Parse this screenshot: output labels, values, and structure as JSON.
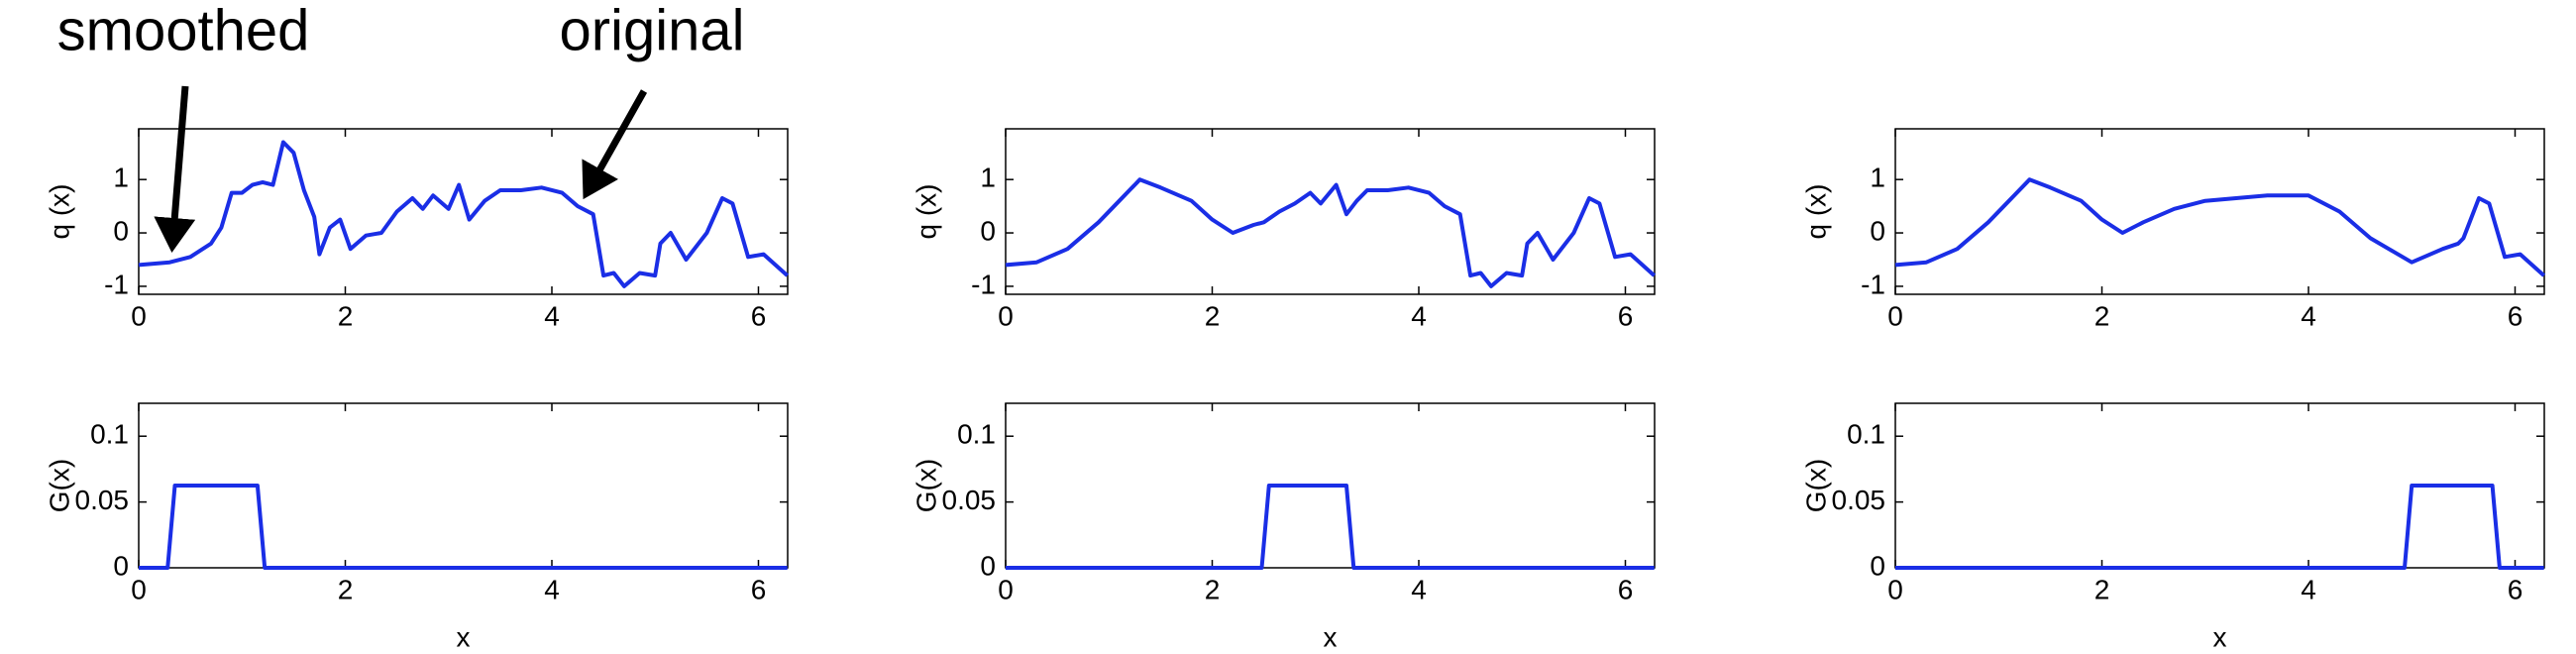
{
  "chart_data": [
    {
      "type": "line",
      "ylabel": "q (x)",
      "annotations": [
        "smoothed",
        "original"
      ],
      "color": "#1a2ee6",
      "x": [
        0,
        0.3,
        0.5,
        0.7,
        0.8,
        0.9,
        1.0,
        1.1,
        1.2,
        1.3,
        1.4,
        1.5,
        1.6,
        1.7,
        1.75,
        1.85,
        1.95,
        2.05,
        2.2,
        2.35,
        2.5,
        2.65,
        2.75,
        2.85,
        3.0,
        3.1,
        3.2,
        3.35,
        3.5,
        3.7,
        3.9,
        4.1,
        4.25,
        4.4,
        4.5,
        4.6,
        4.7,
        4.85,
        5.0,
        5.05,
        5.15,
        5.3,
        5.5,
        5.65,
        5.75,
        5.9,
        6.05,
        6.28
      ],
      "values": [
        -0.6,
        -0.55,
        -0.45,
        -0.2,
        0.1,
        0.75,
        0.75,
        0.9,
        0.95,
        0.9,
        1.7,
        1.5,
        0.8,
        0.3,
        -0.4,
        0.1,
        0.25,
        -0.3,
        -0.05,
        0,
        0.4,
        0.65,
        0.45,
        0.7,
        0.45,
        0.9,
        0.25,
        0.6,
        0.8,
        0.8,
        0.85,
        0.75,
        0.5,
        0.35,
        -0.8,
        -0.75,
        -1.0,
        -0.75,
        -0.8,
        -0.2,
        0.0,
        -0.5,
        0.0,
        0.65,
        0.55,
        -0.45,
        -0.4,
        -0.8
      ],
      "xlim": [
        0,
        6.283
      ],
      "xticks": [
        0,
        2,
        4,
        6
      ],
      "ylim": [
        -1.15,
        1.95
      ],
      "yticks": [
        -1,
        0,
        1
      ]
    },
    {
      "type": "line",
      "ylabel": "q (x)",
      "color": "#1a2ee6",
      "x": [
        0,
        0.3,
        0.6,
        0.9,
        1.1,
        1.3,
        1.5,
        1.8,
        2.0,
        2.2,
        2.4,
        2.5,
        2.65,
        2.8,
        2.95,
        3.05,
        3.2,
        3.3,
        3.4,
        3.5,
        3.7,
        3.9,
        4.1,
        4.25,
        4.4,
        4.5,
        4.6,
        4.7,
        4.85,
        5.0,
        5.05,
        5.15,
        5.3,
        5.5,
        5.65,
        5.75,
        5.9,
        6.05,
        6.28
      ],
      "values": [
        -0.6,
        -0.55,
        -0.3,
        0.2,
        0.6,
        1.0,
        0.85,
        0.6,
        0.25,
        0.0,
        0.15,
        0.2,
        0.4,
        0.55,
        0.75,
        0.55,
        0.9,
        0.35,
        0.6,
        0.8,
        0.8,
        0.85,
        0.75,
        0.5,
        0.35,
        -0.8,
        -0.75,
        -1.0,
        -0.75,
        -0.8,
        -0.2,
        0.0,
        -0.5,
        0.0,
        0.65,
        0.55,
        -0.45,
        -0.4,
        -0.8
      ],
      "xlim": [
        0,
        6.283
      ],
      "xticks": [
        0,
        2,
        4,
        6
      ],
      "ylim": [
        -1.15,
        1.95
      ],
      "yticks": [
        -1,
        0,
        1
      ]
    },
    {
      "type": "line",
      "ylabel": "q (x)",
      "color": "#1a2ee6",
      "x": [
        0,
        0.3,
        0.6,
        0.9,
        1.1,
        1.3,
        1.5,
        1.8,
        2.0,
        2.2,
        2.4,
        2.7,
        3.0,
        3.3,
        3.6,
        4.0,
        4.3,
        4.6,
        5.0,
        5.3,
        5.45,
        5.5,
        5.65,
        5.75,
        5.9,
        6.05,
        6.28
      ],
      "values": [
        -0.6,
        -0.55,
        -0.3,
        0.2,
        0.6,
        1.0,
        0.85,
        0.6,
        0.25,
        0.0,
        0.2,
        0.45,
        0.6,
        0.65,
        0.7,
        0.7,
        0.4,
        -0.1,
        -0.55,
        -0.3,
        -0.2,
        -0.1,
        0.65,
        0.55,
        -0.45,
        -0.4,
        -0.8
      ],
      "xlim": [
        0,
        6.283
      ],
      "xticks": [
        0,
        2,
        4,
        6
      ],
      "ylim": [
        -1.15,
        1.95
      ],
      "yticks": [
        -1,
        0,
        1
      ]
    },
    {
      "type": "line",
      "ylabel": "G(x)",
      "xlabel": "x",
      "color": "#1a2ee6",
      "x": [
        0,
        0.28,
        0.35,
        1.15,
        1.22,
        6.28
      ],
      "values": [
        0,
        0,
        0.0625,
        0.0625,
        0,
        0
      ],
      "xlim": [
        0,
        6.283
      ],
      "xticks": [
        0,
        2,
        4,
        6
      ],
      "ylim": [
        0,
        0.125
      ],
      "yticks": [
        0,
        0.05,
        0.1
      ]
    },
    {
      "type": "line",
      "ylabel": "G(x)",
      "xlabel": "x",
      "color": "#1a2ee6",
      "x": [
        0,
        2.48,
        2.55,
        3.3,
        3.37,
        6.28
      ],
      "values": [
        0,
        0,
        0.0625,
        0.0625,
        0,
        0
      ],
      "xlim": [
        0,
        6.283
      ],
      "xticks": [
        0,
        2,
        4,
        6
      ],
      "ylim": [
        0,
        0.125
      ],
      "yticks": [
        0,
        0.05,
        0.1
      ]
    },
    {
      "type": "line",
      "ylabel": "G(x)",
      "xlabel": "x",
      "color": "#1a2ee6",
      "x": [
        0,
        4.93,
        5.0,
        5.78,
        5.85,
        6.28
      ],
      "values": [
        0,
        0,
        0.0625,
        0.0625,
        0,
        0
      ],
      "xlim": [
        0,
        6.283
      ],
      "xticks": [
        0,
        2,
        4,
        6
      ],
      "ylim": [
        0,
        0.125
      ],
      "yticks": [
        0,
        0.05,
        0.1
      ]
    }
  ]
}
